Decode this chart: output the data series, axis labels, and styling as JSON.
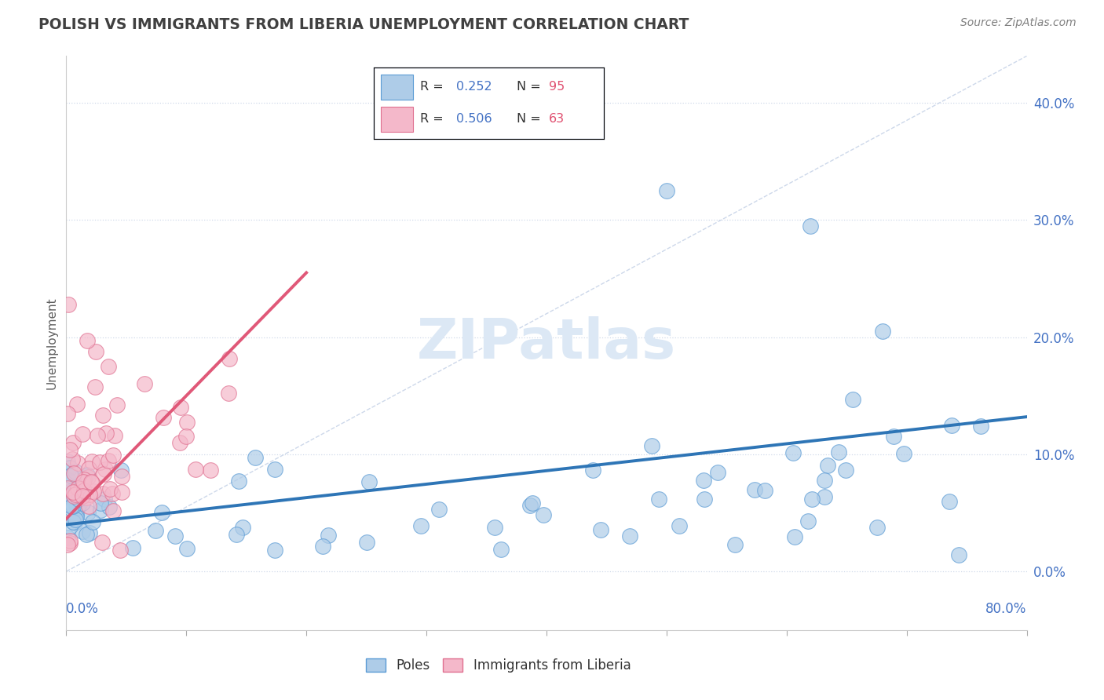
{
  "title": "POLISH VS IMMIGRANTS FROM LIBERIA UNEMPLOYMENT CORRELATION CHART",
  "source": "Source: ZipAtlas.com",
  "ylabel": "Unemployment",
  "legend_poles_R": "0.252",
  "legend_poles_N": "95",
  "legend_liberia_R": "0.506",
  "legend_liberia_N": "63",
  "poles_color": "#aecce8",
  "poles_edge_color": "#5b9bd5",
  "liberia_color": "#f4b8ca",
  "liberia_edge_color": "#e07090",
  "poles_line_color": "#2e75b6",
  "liberia_line_color": "#e05878",
  "ref_line_color": "#c8d4e8",
  "watermark_color": "#dce8f5",
  "background_color": "#ffffff",
  "grid_color": "#d0daea",
  "legend_text_color": "#4472c4",
  "title_color": "#404040",
  "source_color": "#808080",
  "ylabel_color": "#606060",
  "xlim": [
    0.0,
    0.8
  ],
  "ylim": [
    -0.05,
    0.44
  ],
  "yticks": [
    0.0,
    0.1,
    0.2,
    0.3,
    0.4
  ],
  "xticks": [
    0.0,
    0.1,
    0.2,
    0.3,
    0.4,
    0.5,
    0.6,
    0.7,
    0.8
  ]
}
